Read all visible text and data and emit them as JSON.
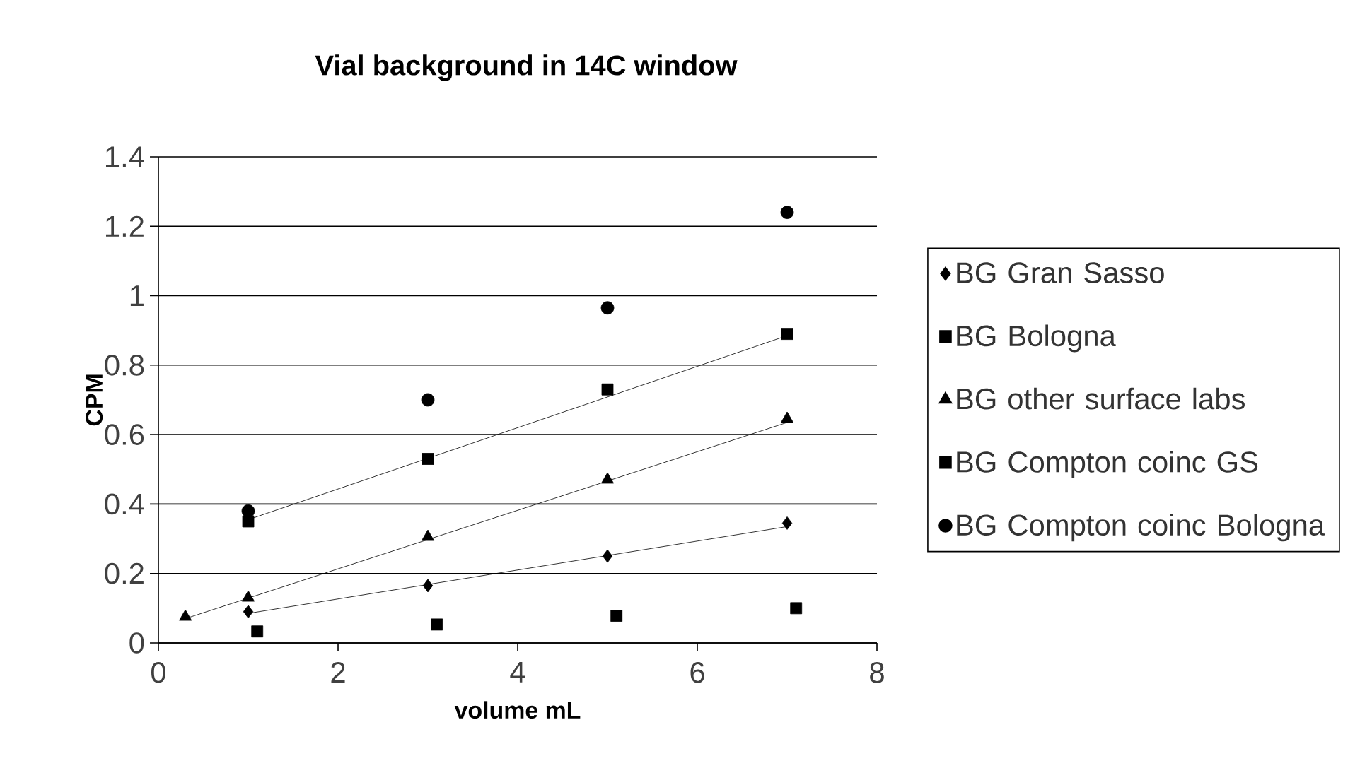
{
  "chart_data": {
    "type": "scatter",
    "title": "Vial background in 14C window",
    "xlabel": "volume mL",
    "ylabel": "CPM",
    "xlim": [
      0,
      8
    ],
    "xticks": [
      0,
      2,
      4,
      6,
      8
    ],
    "ylim": [
      0,
      1.4
    ],
    "yticks": [
      0,
      0.2,
      0.4,
      0.6,
      0.8,
      1,
      1.2,
      1.4
    ],
    "grid": "y",
    "legend": "right",
    "series": [
      {
        "name": "BG Gran Sasso",
        "color": "#000000",
        "marker": "diamond",
        "x": [
          1,
          3,
          5,
          7
        ],
        "values": [
          0.09,
          0.165,
          0.25,
          0.345
        ]
      },
      {
        "name": "BG Bologna",
        "color": "#000000",
        "marker": "square",
        "x": [
          1,
          3,
          5,
          7
        ],
        "values": [
          0.35,
          0.53,
          0.73,
          0.89
        ]
      },
      {
        "name": "BG other surface labs",
        "color": "#000000",
        "marker": "triangle",
        "x": [
          0.3,
          1,
          3,
          5,
          7
        ],
        "values": [
          0.075,
          0.13,
          0.305,
          0.47,
          0.645
        ]
      },
      {
        "name": "BG Compton coinc GS",
        "color": "#000000",
        "marker": "square",
        "x": [
          1.1,
          3.1,
          5.1,
          7.1
        ],
        "values": [
          0.033,
          0.053,
          0.078,
          0.1
        ]
      },
      {
        "name": "BG Compton coinc Bologna",
        "color": "#000000",
        "marker": "circle",
        "x": [
          1,
          3,
          5,
          7
        ],
        "values": [
          0.38,
          0.7,
          0.965,
          1.24
        ]
      },
      {
        "type": "line",
        "color": "#000000",
        "x": [
          1,
          7
        ],
        "values": [
          0.085,
          0.335
        ]
      },
      {
        "type": "line",
        "color": "#000000",
        "x": [
          1,
          7
        ],
        "values": [
          0.355,
          0.885
        ]
      },
      {
        "type": "line",
        "color": "#000000",
        "x": [
          0.3,
          7
        ],
        "values": [
          0.07,
          0.635
        ]
      }
    ]
  }
}
